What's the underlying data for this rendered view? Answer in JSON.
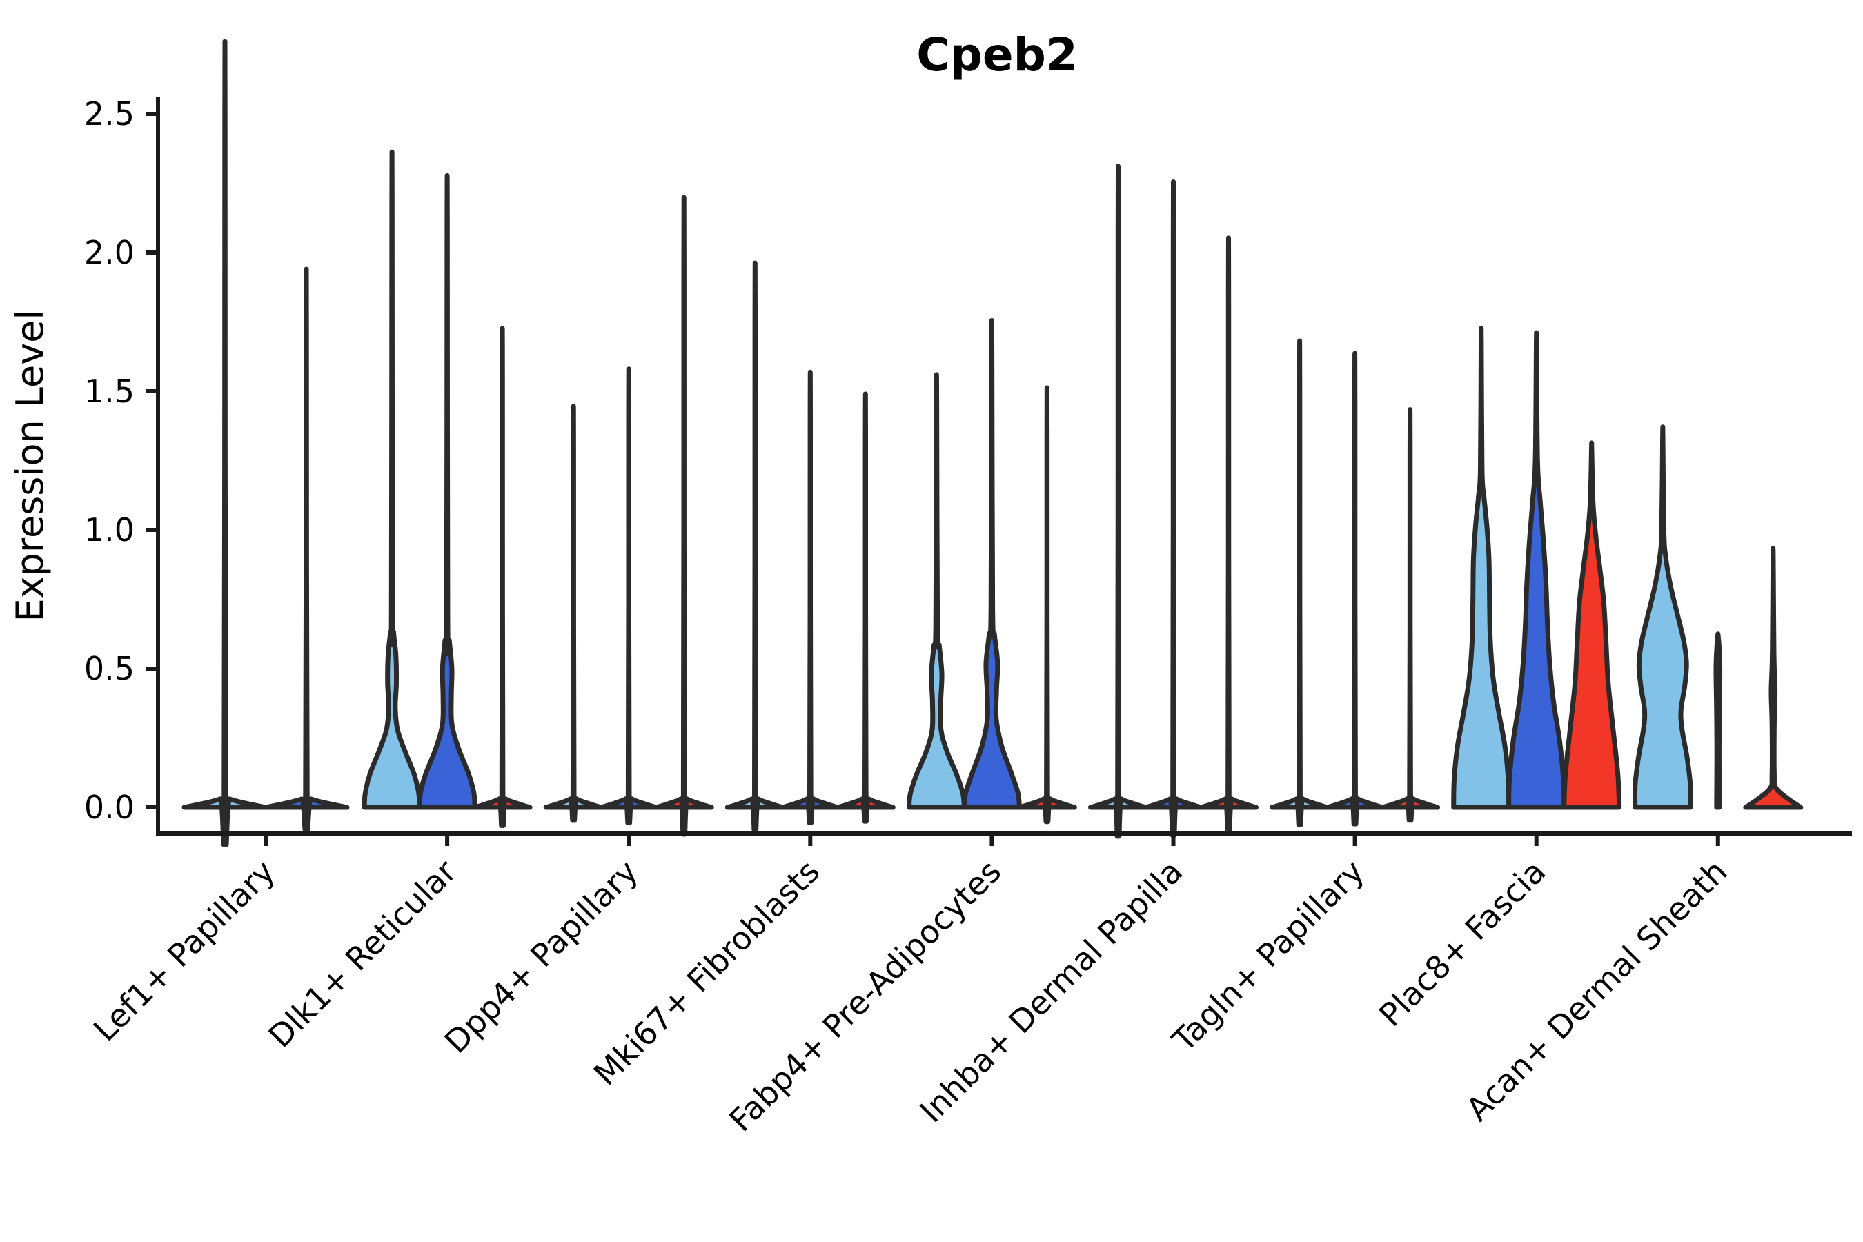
{
  "title": "Cpeb2",
  "y_axis": {
    "label": "Expression Level",
    "tick_labels": [
      "0.0",
      "0.5",
      "1.0",
      "1.5",
      "2.0",
      "2.5"
    ]
  },
  "colors": {
    "group_light_blue": "#82C2E8",
    "group_dark_blue": "#3B63D8",
    "group_red": "#F23728",
    "violin_outline": "#2B2B2B",
    "axis": "#1A1A1A"
  },
  "chart_data": {
    "type": "violin",
    "title": "Cpeb2",
    "xlabel": "",
    "ylabel": "Expression Level",
    "ylim": [
      0,
      2.5
    ],
    "yticks": [
      0,
      0.5,
      1,
      1.5,
      2,
      2.5
    ],
    "grid": false,
    "legend": "none",
    "categories": [
      "Lef1+ Papillary",
      "Dlk1+ Reticular",
      "Dpp4+ Papillary",
      "Mki67+ Fibroblasts",
      "Fabp4+ Pre-Adipocytes",
      "Inhba+ Dermal Papilla",
      "Tagln+ Papillary",
      "Plac8+ Fascia",
      "Acan+ Dermal Sheath"
    ],
    "series": [
      {
        "name": "group-1-light-blue",
        "color": "#82C2E8",
        "max_expression": [
          2.46,
          2.18,
          1.29,
          1.75,
          1.46,
          2.06,
          1.5,
          1.67,
          1.33
        ]
      },
      {
        "name": "group-2-dark-blue",
        "color": "#3B63D8",
        "max_expression": [
          1.73,
          2.1,
          1.41,
          1.4,
          1.64,
          2.01,
          1.46,
          1.66,
          0.62
        ]
      },
      {
        "name": "group-3-red",
        "color": "#F23728",
        "max_expression": [
          null,
          1.54,
          1.96,
          1.33,
          1.35,
          1.83,
          1.28,
          1.29,
          0.89
        ]
      }
    ],
    "violins": [
      {
        "category": 0,
        "group": 0,
        "peak": 2.46,
        "profile": [
          [
            0,
            1
          ],
          [
            0.012,
            0.6
          ],
          [
            0.03,
            0.12
          ],
          [
            0.05,
            0.02
          ],
          [
            2.46,
            0.004
          ]
        ]
      },
      {
        "category": 0,
        "group": 1,
        "peak": 1.73,
        "profile": [
          [
            0,
            1
          ],
          [
            0.012,
            0.6
          ],
          [
            0.03,
            0.12
          ],
          [
            0.05,
            0.02
          ],
          [
            1.73,
            0.004
          ]
        ]
      },
      {
        "category": 1,
        "group": 0,
        "peak": 2.18,
        "profile": [
          [
            0,
            1
          ],
          [
            0.05,
            0.97
          ],
          [
            0.12,
            0.8
          ],
          [
            0.2,
            0.48
          ],
          [
            0.28,
            0.2
          ],
          [
            0.36,
            0.12
          ],
          [
            0.45,
            0.16
          ],
          [
            0.55,
            0.14
          ],
          [
            0.63,
            0.06
          ],
          [
            0.72,
            0.02
          ],
          [
            2.18,
            0.004
          ]
        ]
      },
      {
        "category": 1,
        "group": 1,
        "peak": 2.1,
        "profile": [
          [
            0,
            1
          ],
          [
            0.05,
            0.97
          ],
          [
            0.12,
            0.78
          ],
          [
            0.21,
            0.42
          ],
          [
            0.3,
            0.17
          ],
          [
            0.4,
            0.15
          ],
          [
            0.5,
            0.17
          ],
          [
            0.6,
            0.08
          ],
          [
            0.68,
            0.02
          ],
          [
            2.1,
            0.004
          ]
        ]
      },
      {
        "category": 1,
        "group": 2,
        "peak": 1.54,
        "profile": [
          [
            0,
            1
          ],
          [
            0.012,
            0.6
          ],
          [
            0.03,
            0.12
          ],
          [
            0.05,
            0.02
          ],
          [
            1.54,
            0.004
          ]
        ]
      },
      {
        "category": 2,
        "group": 0,
        "peak": 1.29,
        "profile": [
          [
            0,
            1
          ],
          [
            0.012,
            0.6
          ],
          [
            0.03,
            0.12
          ],
          [
            0.05,
            0.02
          ],
          [
            1.29,
            0.004
          ]
        ]
      },
      {
        "category": 2,
        "group": 1,
        "peak": 1.41,
        "profile": [
          [
            0,
            1
          ],
          [
            0.012,
            0.6
          ],
          [
            0.03,
            0.12
          ],
          [
            0.05,
            0.02
          ],
          [
            1.41,
            0.004
          ]
        ]
      },
      {
        "category": 2,
        "group": 2,
        "peak": 1.96,
        "profile": [
          [
            0,
            1
          ],
          [
            0.012,
            0.6
          ],
          [
            0.03,
            0.12
          ],
          [
            0.05,
            0.02
          ],
          [
            1.96,
            0.004
          ]
        ]
      },
      {
        "category": 3,
        "group": 0,
        "peak": 1.75,
        "profile": [
          [
            0,
            1
          ],
          [
            0.012,
            0.6
          ],
          [
            0.03,
            0.12
          ],
          [
            0.05,
            0.02
          ],
          [
            1.75,
            0.004
          ]
        ]
      },
      {
        "category": 3,
        "group": 1,
        "peak": 1.4,
        "profile": [
          [
            0,
            1
          ],
          [
            0.012,
            0.6
          ],
          [
            0.03,
            0.12
          ],
          [
            0.05,
            0.02
          ],
          [
            1.4,
            0.004
          ]
        ]
      },
      {
        "category": 3,
        "group": 2,
        "peak": 1.33,
        "profile": [
          [
            0,
            1
          ],
          [
            0.012,
            0.6
          ],
          [
            0.03,
            0.12
          ],
          [
            0.05,
            0.02
          ],
          [
            1.33,
            0.004
          ]
        ]
      },
      {
        "category": 4,
        "group": 0,
        "peak": 1.46,
        "profile": [
          [
            0,
            1
          ],
          [
            0.05,
            0.95
          ],
          [
            0.12,
            0.72
          ],
          [
            0.2,
            0.38
          ],
          [
            0.28,
            0.16
          ],
          [
            0.38,
            0.15
          ],
          [
            0.48,
            0.19
          ],
          [
            0.58,
            0.1
          ],
          [
            0.66,
            0.03
          ],
          [
            1.46,
            0.004
          ]
        ]
      },
      {
        "category": 4,
        "group": 1,
        "peak": 1.64,
        "profile": [
          [
            0,
            1
          ],
          [
            0.05,
            0.95
          ],
          [
            0.12,
            0.72
          ],
          [
            0.22,
            0.36
          ],
          [
            0.32,
            0.16
          ],
          [
            0.42,
            0.17
          ],
          [
            0.52,
            0.21
          ],
          [
            0.62,
            0.1
          ],
          [
            0.72,
            0.03
          ],
          [
            1.64,
            0.004
          ]
        ]
      },
      {
        "category": 4,
        "group": 2,
        "peak": 1.35,
        "profile": [
          [
            0,
            1
          ],
          [
            0.012,
            0.6
          ],
          [
            0.03,
            0.12
          ],
          [
            0.05,
            0.02
          ],
          [
            1.35,
            0.004
          ]
        ]
      },
      {
        "category": 5,
        "group": 0,
        "peak": 2.06,
        "profile": [
          [
            0,
            1
          ],
          [
            0.012,
            0.6
          ],
          [
            0.03,
            0.12
          ],
          [
            0.05,
            0.02
          ],
          [
            2.06,
            0.004
          ]
        ]
      },
      {
        "category": 5,
        "group": 1,
        "peak": 2.01,
        "profile": [
          [
            0,
            1
          ],
          [
            0.012,
            0.6
          ],
          [
            0.03,
            0.12
          ],
          [
            0.05,
            0.02
          ],
          [
            2.01,
            0.004
          ]
        ]
      },
      {
        "category": 5,
        "group": 2,
        "peak": 1.83,
        "profile": [
          [
            0,
            1
          ],
          [
            0.012,
            0.6
          ],
          [
            0.03,
            0.12
          ],
          [
            0.05,
            0.02
          ],
          [
            1.83,
            0.004
          ]
        ]
      },
      {
        "category": 6,
        "group": 0,
        "peak": 1.5,
        "profile": [
          [
            0,
            1
          ],
          [
            0.012,
            0.6
          ],
          [
            0.03,
            0.12
          ],
          [
            0.05,
            0.02
          ],
          [
            1.5,
            0.004
          ]
        ]
      },
      {
        "category": 6,
        "group": 1,
        "peak": 1.46,
        "profile": [
          [
            0,
            1
          ],
          [
            0.012,
            0.6
          ],
          [
            0.03,
            0.12
          ],
          [
            0.05,
            0.02
          ],
          [
            1.46,
            0.004
          ]
        ]
      },
      {
        "category": 6,
        "group": 2,
        "peak": 1.28,
        "profile": [
          [
            0,
            1
          ],
          [
            0.012,
            0.6
          ],
          [
            0.03,
            0.12
          ],
          [
            0.05,
            0.02
          ],
          [
            1.28,
            0.004
          ]
        ]
      },
      {
        "category": 7,
        "group": 0,
        "peak": 1.67,
        "profile": [
          [
            0,
            1
          ],
          [
            0.1,
            0.98
          ],
          [
            0.22,
            0.86
          ],
          [
            0.34,
            0.64
          ],
          [
            0.46,
            0.44
          ],
          [
            0.6,
            0.33
          ],
          [
            0.75,
            0.3
          ],
          [
            0.9,
            0.28
          ],
          [
            1.02,
            0.2
          ],
          [
            1.12,
            0.1
          ],
          [
            1.22,
            0.03
          ],
          [
            1.67,
            0.004
          ]
        ]
      },
      {
        "category": 7,
        "group": 1,
        "peak": 1.66,
        "profile": [
          [
            0,
            1
          ],
          [
            0.1,
            0.98
          ],
          [
            0.24,
            0.84
          ],
          [
            0.38,
            0.62
          ],
          [
            0.52,
            0.48
          ],
          [
            0.66,
            0.4
          ],
          [
            0.8,
            0.35
          ],
          [
            0.95,
            0.26
          ],
          [
            1.1,
            0.14
          ],
          [
            1.25,
            0.04
          ],
          [
            1.66,
            0.004
          ]
        ]
      },
      {
        "category": 7,
        "group": 2,
        "peak": 1.29,
        "profile": [
          [
            0,
            1
          ],
          [
            0.12,
            0.95
          ],
          [
            0.28,
            0.78
          ],
          [
            0.45,
            0.6
          ],
          [
            0.6,
            0.52
          ],
          [
            0.74,
            0.44
          ],
          [
            0.86,
            0.3
          ],
          [
            0.98,
            0.15
          ],
          [
            1.1,
            0.05
          ],
          [
            1.29,
            0.004
          ]
        ]
      },
      {
        "category": 8,
        "group": 0,
        "peak": 1.33,
        "profile": [
          [
            0,
            1
          ],
          [
            0.08,
            1
          ],
          [
            0.18,
            0.88
          ],
          [
            0.28,
            0.7
          ],
          [
            0.35,
            0.66
          ],
          [
            0.44,
            0.8
          ],
          [
            0.52,
            0.86
          ],
          [
            0.6,
            0.76
          ],
          [
            0.7,
            0.52
          ],
          [
            0.8,
            0.28
          ],
          [
            0.9,
            0.11
          ],
          [
            1.0,
            0.04
          ],
          [
            1.33,
            0.004
          ]
        ]
      },
      {
        "category": 8,
        "group": 1,
        "peak": 0.62,
        "profile": [
          [
            0,
            0.05
          ],
          [
            0.2,
            0.04
          ],
          [
            0.35,
            0.05
          ],
          [
            0.5,
            0.07
          ],
          [
            0.58,
            0.04
          ],
          [
            0.62,
            0.004
          ]
        ]
      },
      {
        "category": 8,
        "group": 2,
        "peak": 0.89,
        "profile": [
          [
            0,
            1
          ],
          [
            0.03,
            0.55
          ],
          [
            0.07,
            0.1
          ],
          [
            0.12,
            0.04
          ],
          [
            0.3,
            0.04
          ],
          [
            0.42,
            0.07
          ],
          [
            0.55,
            0.03
          ],
          [
            0.89,
            0.004
          ]
        ]
      }
    ]
  }
}
